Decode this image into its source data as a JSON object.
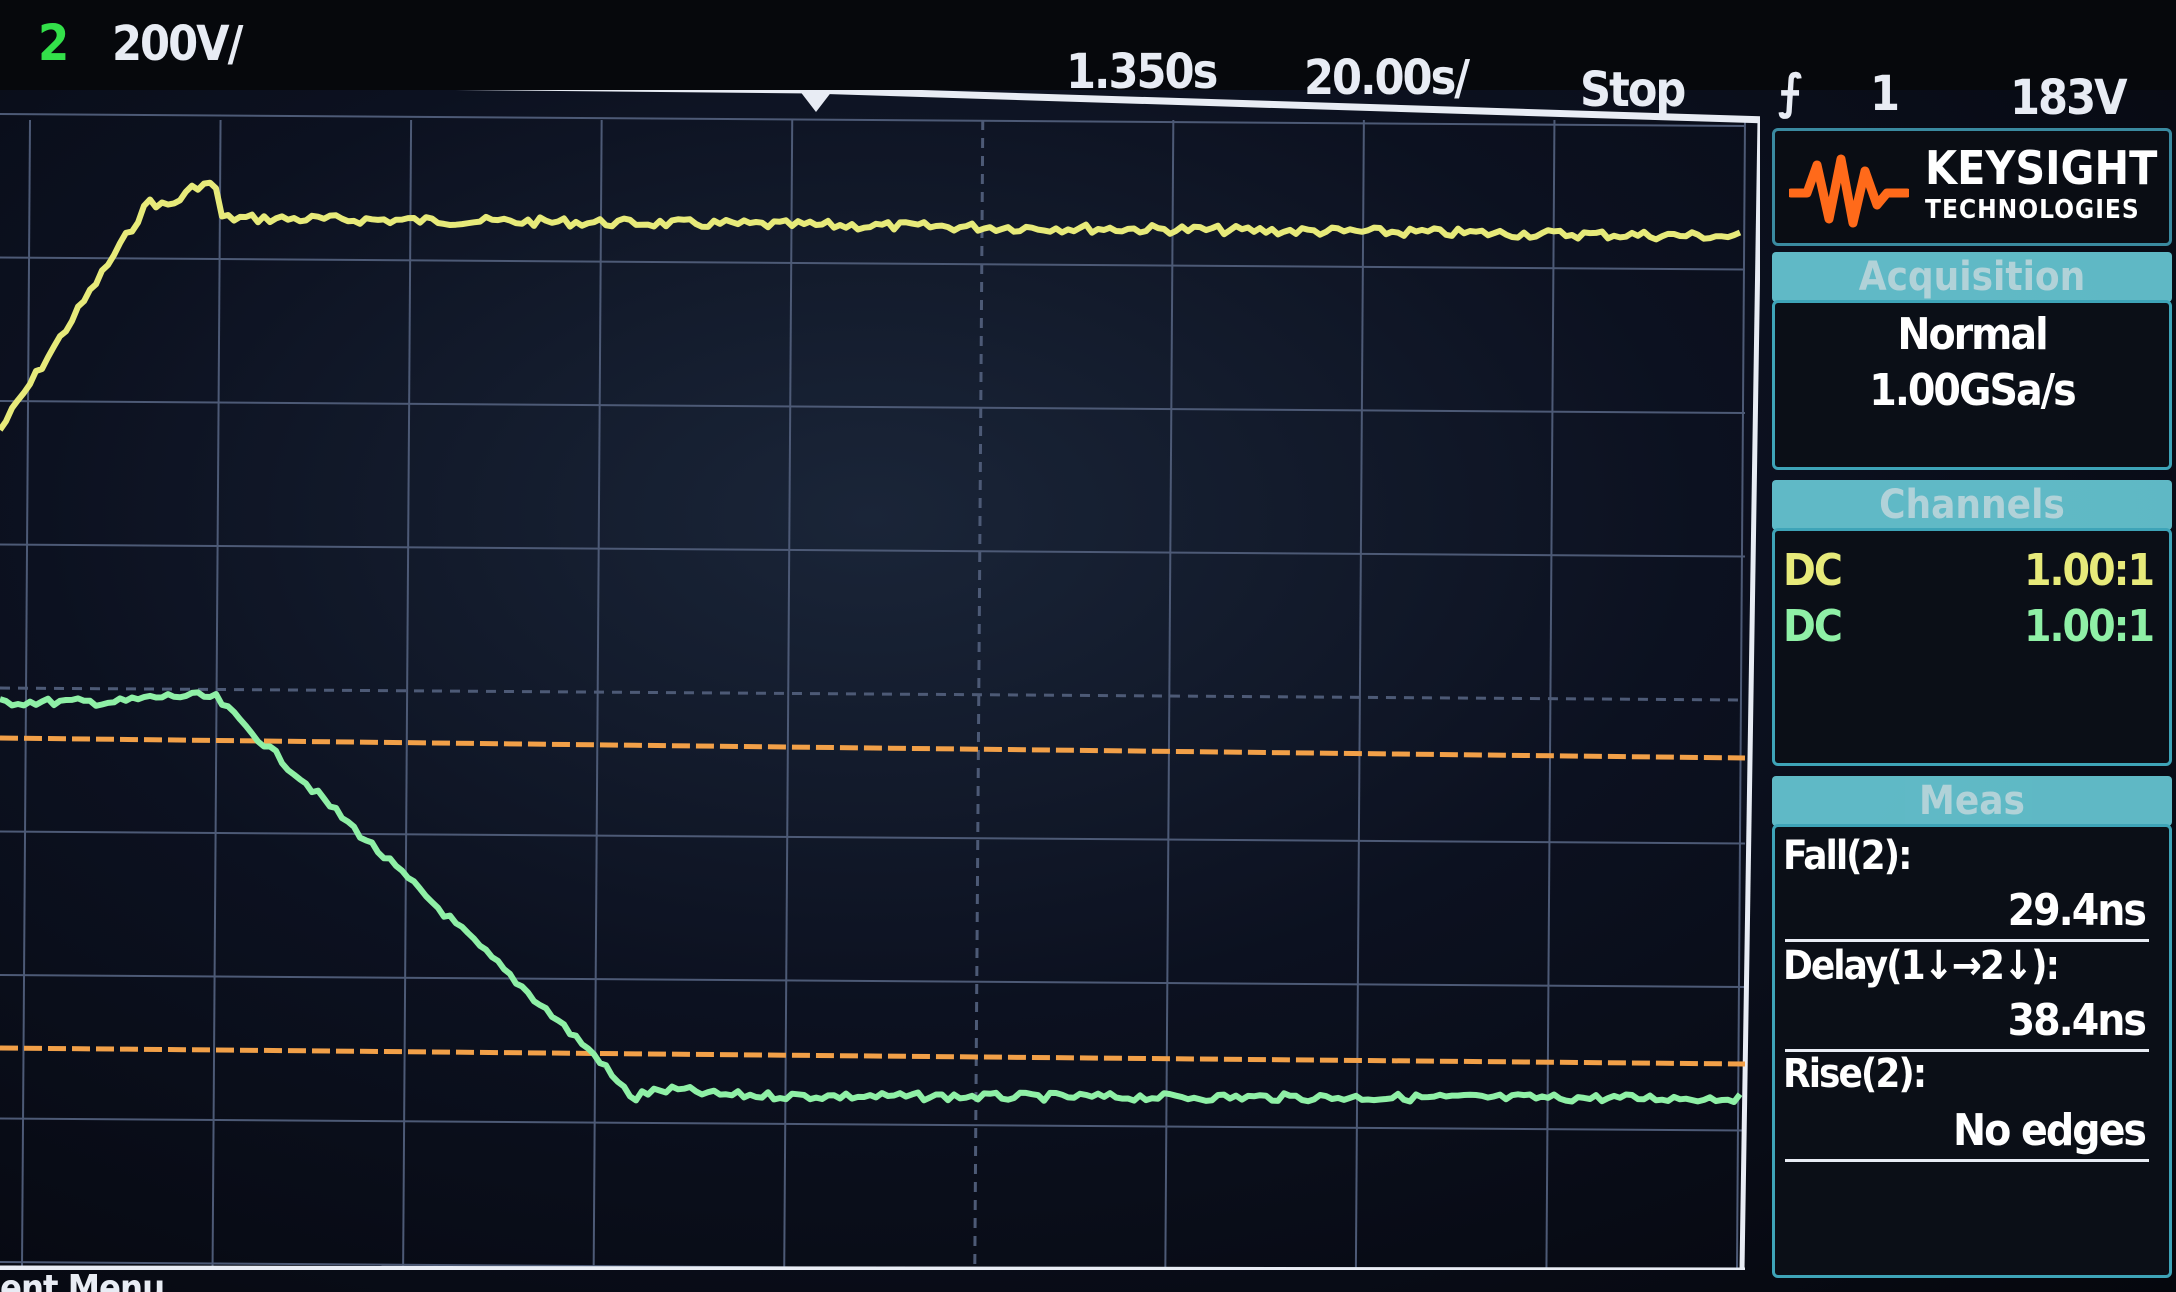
{
  "top_bar": {
    "channel_number": "2",
    "channel_scale": "200V/",
    "trigger_delay": "1.350s",
    "timebase": "20.00s/",
    "run_state": "Stop",
    "trigger_icon": "rising-edge-icon",
    "trigger_source": "1",
    "trigger_level": "183V"
  },
  "panel": {
    "brand": "KEYSIGHT",
    "brand_sub": "TECHNOLOGIES",
    "acquisition": {
      "header": "Acquisition",
      "mode": "Normal",
      "sample_rate": "1.00GSa/s"
    },
    "channels": {
      "header": "Channels",
      "rows": [
        {
          "coupling": "DC",
          "probe": "1.00:1"
        },
        {
          "coupling": "DC",
          "probe": "1.00:1"
        }
      ]
    },
    "measurements": {
      "header": "Meas",
      "items": [
        {
          "label": "Fall(2):",
          "value": "29.4ns"
        },
        {
          "label": "Delay(1↓→2↓):",
          "value": "38.4ns"
        },
        {
          "label": "Rise(2):",
          "value": "No edges"
        }
      ]
    }
  },
  "bottom": {
    "softkey_fragment": "ent Menu"
  },
  "colors": {
    "ch1": "#e7ea7a",
    "ch2": "#8ff0a6",
    "threshold": "#f2a048",
    "grid": "#4d5a76",
    "frame": "#e8ecf4",
    "accent": "#6fd7e4"
  },
  "display": {
    "grid_divisions_x": 9,
    "grid_divisions_y": 8
  }
}
